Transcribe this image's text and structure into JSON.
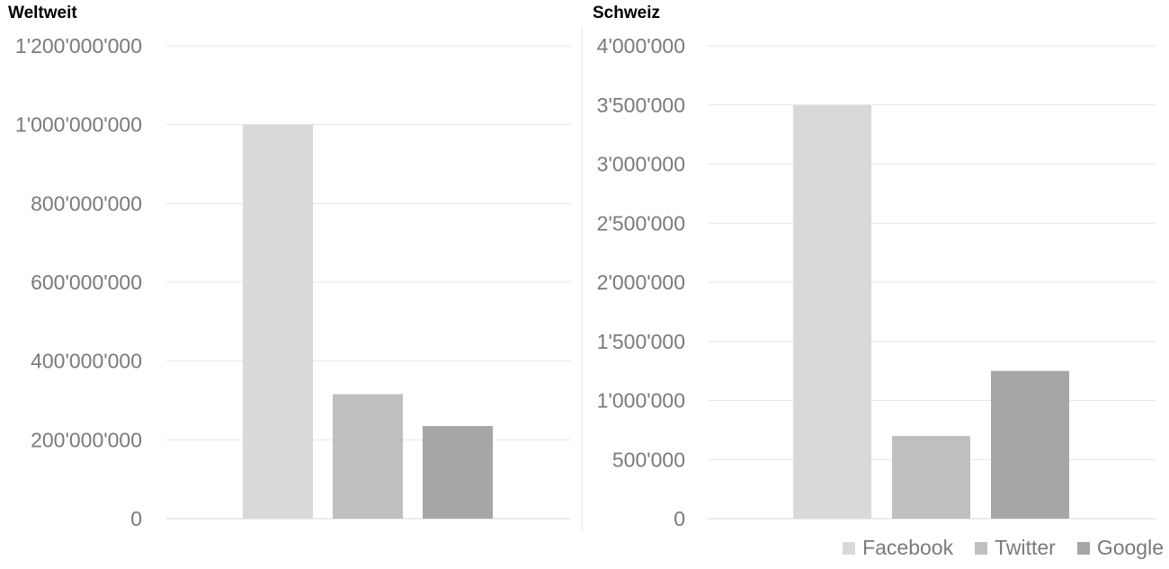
{
  "chart_data": [
    {
      "type": "bar",
      "title": "Weltweit",
      "categories": [
        "Facebook",
        "Twitter",
        "Google"
      ],
      "values": [
        1000000000,
        316000000,
        235000000
      ],
      "ylim": [
        0,
        1200000000
      ],
      "yticks": [
        0,
        200000000,
        400000000,
        600000000,
        800000000,
        1000000000,
        1200000000
      ],
      "ytick_labels": [
        "0",
        "200'000'000",
        "400'000'000",
        "600'000'000",
        "800'000'000",
        "1'000'000'000",
        "1'200'000'000"
      ],
      "xlabel": "",
      "ylabel": "",
      "grid": true
    },
    {
      "type": "bar",
      "title": "Schweiz",
      "categories": [
        "Facebook",
        "Twitter",
        "Google"
      ],
      "values": [
        3500000,
        700000,
        1250000
      ],
      "ylim": [
        0,
        4000000
      ],
      "yticks": [
        0,
        500000,
        1000000,
        1500000,
        2000000,
        2500000,
        3000000,
        3500000,
        4000000
      ],
      "ytick_labels": [
        "0",
        "500'000",
        "1'000'000",
        "1'500'000",
        "2'000'000",
        "2'500'000",
        "3'000'000",
        "3'500'000",
        "4'000'000"
      ],
      "xlabel": "",
      "ylabel": "",
      "grid": true
    }
  ],
  "legend": {
    "placement": "bottom-right",
    "items": [
      {
        "label": "Facebook",
        "color": "#d9d9d9"
      },
      {
        "label": "Twitter",
        "color": "#bfbfbf"
      },
      {
        "label": "Google",
        "color": "#a6a6a6"
      }
    ]
  },
  "colors": {
    "gridline": "#e6e6e6",
    "tick_label": "#7a7a7a",
    "divider": "#e0e0e0"
  }
}
